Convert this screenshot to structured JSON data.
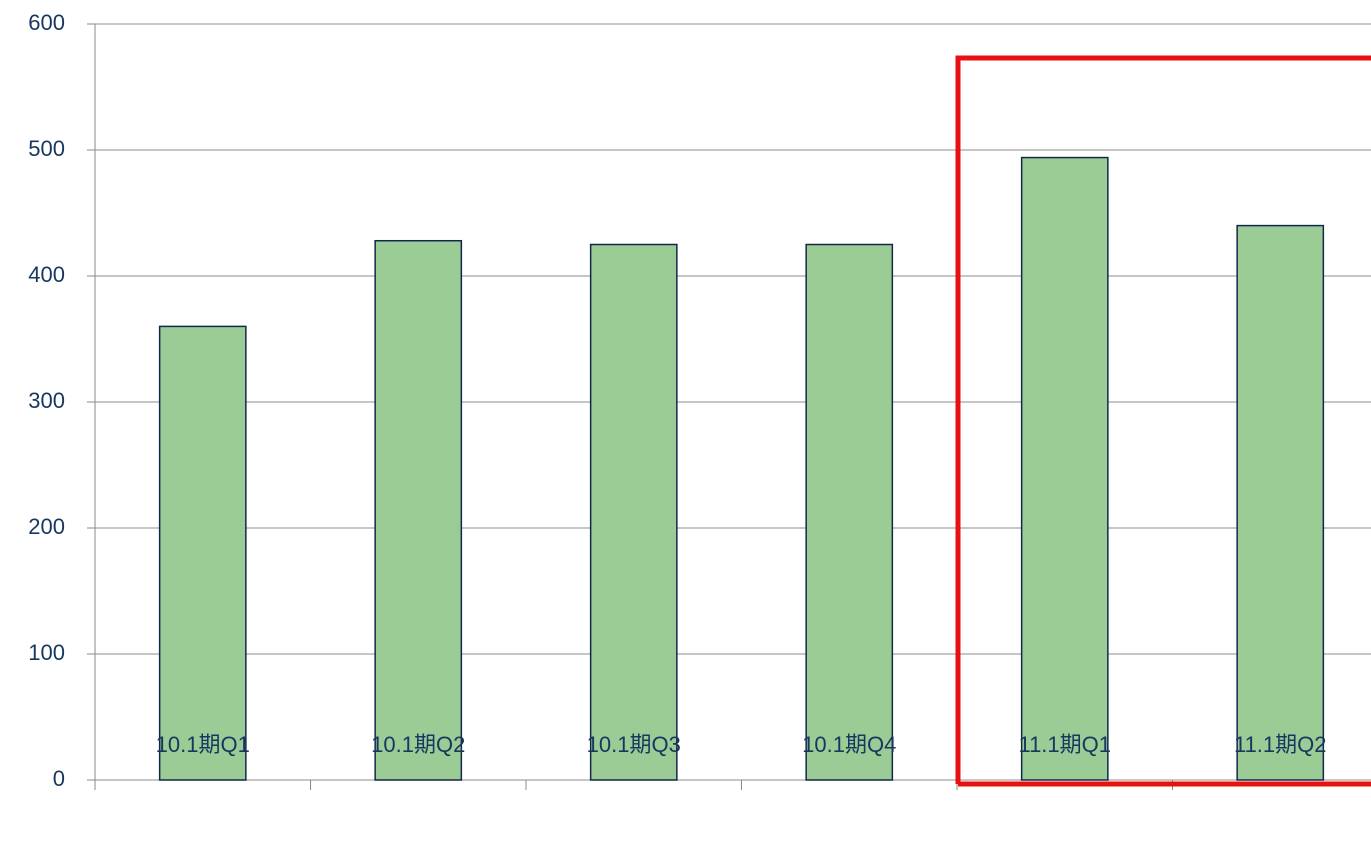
{
  "chart_data": {
    "type": "bar",
    "categories": [
      "10.1期Q1",
      "10.1期Q2",
      "10.1期Q3",
      "10.1期Q4",
      "11.1期Q1",
      "11.1期Q2"
    ],
    "values": [
      360,
      428,
      425,
      425,
      494,
      440
    ],
    "color": "#9ccc96",
    "ylim": [
      0,
      600
    ],
    "yticks": [
      0,
      100,
      200,
      300,
      400,
      500,
      600
    ],
    "grid": true
  }
}
